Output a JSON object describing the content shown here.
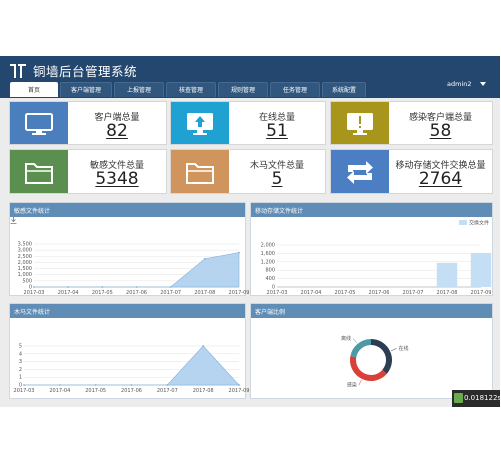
{
  "header": {
    "title": "铜墙后台管理系统",
    "user": "admin2",
    "tabs": [
      {
        "label": "首页",
        "active": true
      },
      {
        "label": "客户端管理",
        "active": false
      },
      {
        "label": "上报管理",
        "active": false
      },
      {
        "label": "核查管理",
        "active": false
      },
      {
        "label": "规则管理",
        "active": false
      },
      {
        "label": "任务管理",
        "active": false
      },
      {
        "label": "系统配置",
        "active": false
      }
    ]
  },
  "stats": [
    {
      "label": "客户端总量",
      "value": "82",
      "color": "#4a7ebc",
      "icon": "monitor-icon"
    },
    {
      "label": "在线总量",
      "value": "51",
      "color": "#1fa1d2",
      "icon": "monitor-upload-icon"
    },
    {
      "label": "感染客户端总量",
      "value": "58",
      "color": "#a8951c",
      "icon": "monitor-alert-icon"
    },
    {
      "label": "敏感文件总量",
      "value": "5348",
      "color": "#5a8f4f",
      "icon": "folder-icon"
    },
    {
      "label": "木马文件总量",
      "value": "5",
      "color": "#cf955c",
      "icon": "folder-warning-icon"
    },
    {
      "label": "移动存储文件交换总量",
      "value": "2764",
      "color": "#4c7ec4",
      "icon": "exchange-icon"
    }
  ],
  "panels": {
    "sensitive": {
      "title": "敏感文件统计"
    },
    "mobile": {
      "title": "移动存储文件统计"
    },
    "trojan": {
      "title": "木马文件统计"
    },
    "client_ratio": {
      "title": "客户端比例"
    }
  },
  "timer": "0.018122s",
  "chart_data": [
    {
      "type": "area",
      "categories": [
        "2017-03",
        "2017-04",
        "2017-05",
        "2017-06",
        "2017-07",
        "2017-08",
        "2017-09"
      ],
      "values": [
        0,
        0,
        0,
        0,
        0,
        2300,
        2800
      ],
      "ylim": [
        0,
        3500
      ],
      "yticks": [
        "0",
        "500",
        "1,000",
        "1,500",
        "2,000",
        "2,500",
        "3,000",
        "3,500"
      ],
      "color": "#a9cdec"
    },
    {
      "type": "bar",
      "categories": [
        "2017-03",
        "2017-04",
        "2017-05",
        "2017-06",
        "2017-07",
        "2017-08",
        "2017-09"
      ],
      "series": [
        {
          "name": "交换文件",
          "values": [
            0,
            0,
            0,
            0,
            0,
            1150,
            1620
          ]
        }
      ],
      "ylim": [
        0,
        2000
      ],
      "yticks": [
        "0",
        "400",
        "800",
        "1,200",
        "1,600",
        "2,000"
      ],
      "legend": "top-right",
      "color": "#c4dff5"
    },
    {
      "type": "area",
      "categories": [
        "2017-03",
        "2017-04",
        "2017-05",
        "2017-06",
        "2017-07",
        "2017-08",
        "2017-09"
      ],
      "values": [
        0,
        0,
        0,
        0,
        0,
        5,
        0
      ],
      "ylim": [
        0,
        5
      ],
      "yticks": [
        "0",
        "1",
        "2",
        "3",
        "4",
        "5"
      ],
      "color": "#a9cdec"
    },
    {
      "type": "pie",
      "labels": [
        "离线",
        "在线",
        "感染"
      ],
      "values": [
        31,
        51,
        58
      ],
      "colors": [
        "#4c9aa6",
        "#2c3e50",
        "#d9403a"
      ]
    }
  ]
}
